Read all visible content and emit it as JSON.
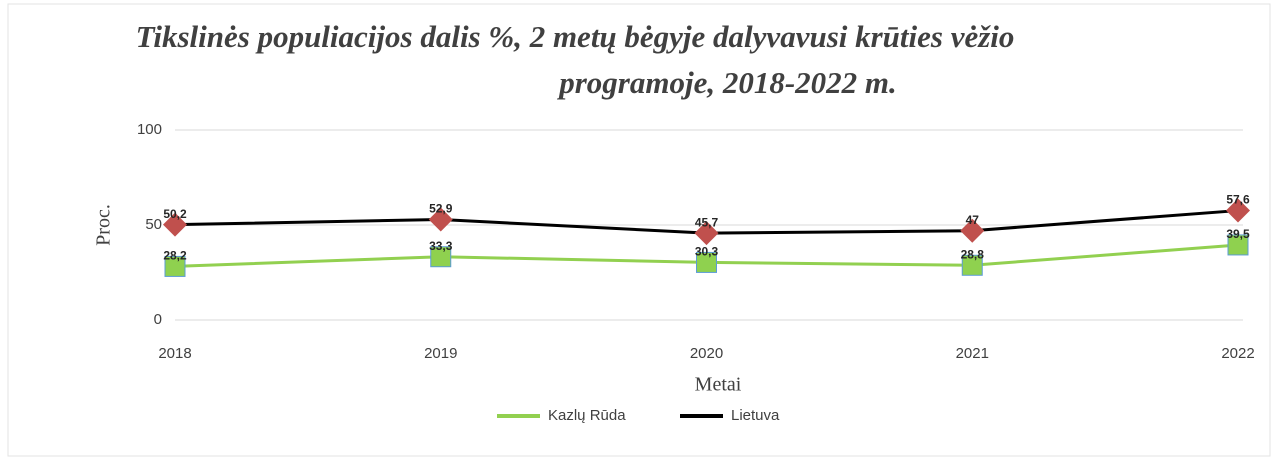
{
  "chart_data": {
    "type": "line",
    "title": [
      "Tikslinės populiacijos dalis %, 2 metų bėgyje dalyvavusi krūties vėžio",
      "programoje, 2018-2022 m."
    ],
    "x_label": "Metai",
    "y_label": "Proc.",
    "categories": [
      "2018",
      "2019",
      "2020",
      "2021",
      "2022"
    ],
    "series": [
      {
        "name": "Kazlų Rūda",
        "color": "#92d050",
        "marker": "square",
        "marker_color": "#8fd14f",
        "values": [
          28.2,
          33.3,
          30.3,
          28.8,
          39.5
        ],
        "value_labels": [
          "28,2",
          "33,3",
          "30,3",
          "28,8",
          "39,5"
        ]
      },
      {
        "name": "Lietuva",
        "color": "#000000",
        "marker": "diamond",
        "marker_color": "#c0504d",
        "values": [
          50.2,
          52.9,
          45.7,
          47,
          57.6
        ],
        "value_labels": [
          "50,2",
          "52,9",
          "45,7",
          "47",
          "57,6"
        ]
      }
    ],
    "ylim": [
      0,
      100
    ],
    "yticks": [
      0,
      50,
      100
    ],
    "grid": true,
    "legend": "bottom"
  }
}
